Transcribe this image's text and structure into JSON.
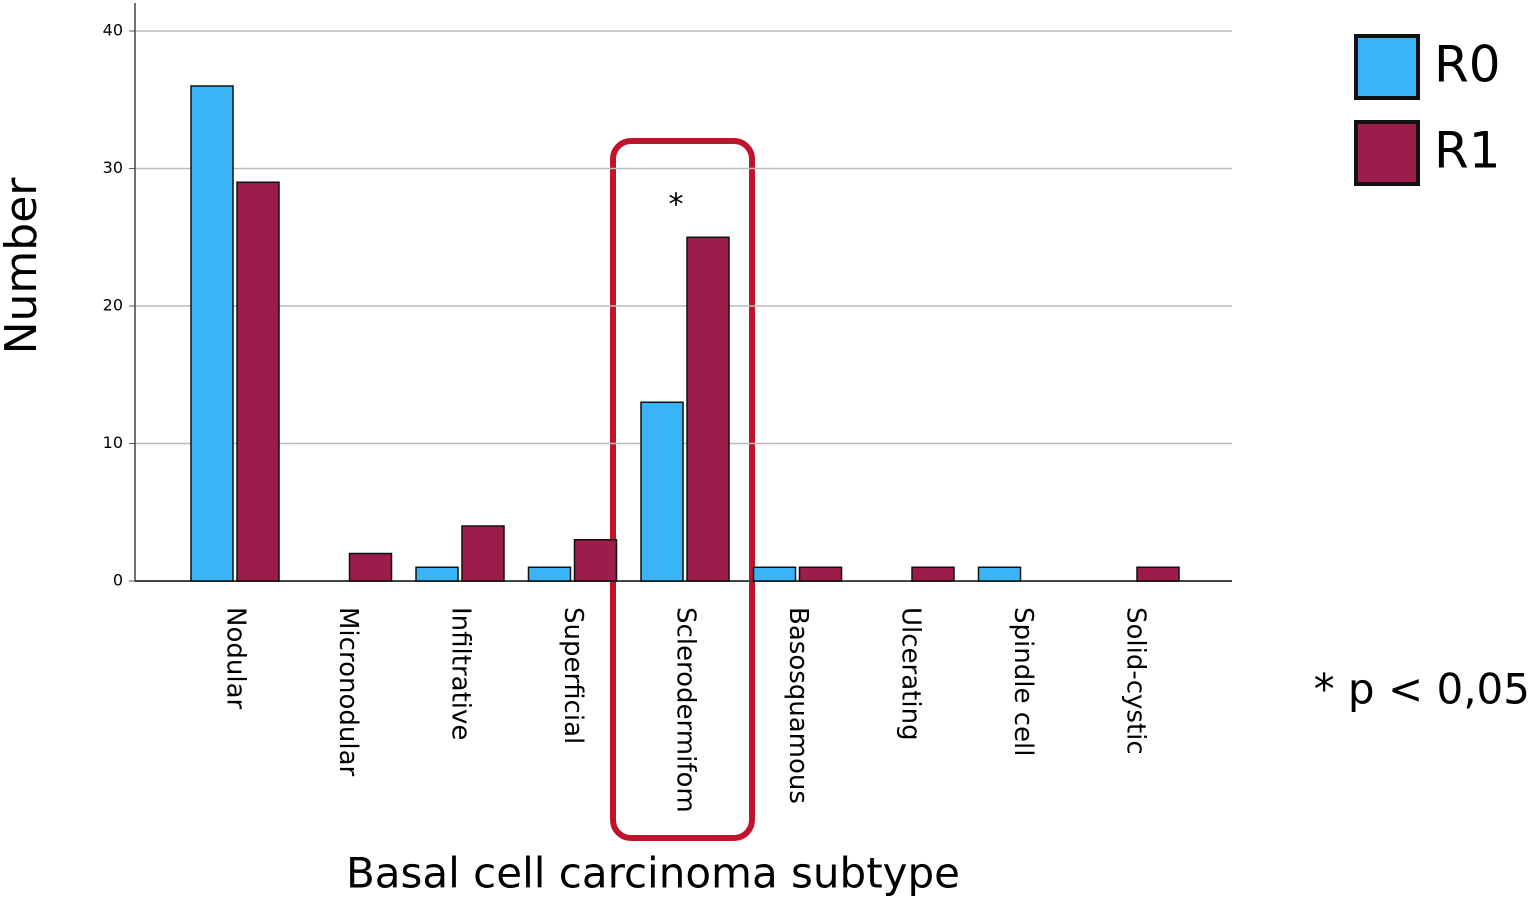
{
  "chart_data": {
    "type": "bar",
    "x_label": "Basal cell carcinoma subtype",
    "y_label": "Number",
    "categories": [
      "Nodular",
      "Micronodular",
      "Infiltrative",
      "Superficial",
      "Sclerodermifom",
      "Basosquamous",
      "Ulcerating",
      "Spindle cell",
      "Solid-cystic"
    ],
    "series": [
      {
        "name": "R0",
        "color": "#38b4f7",
        "values": [
          36,
          0,
          1,
          1,
          13,
          1,
          0,
          1,
          0
        ]
      },
      {
        "name": "R1",
        "color": "#9c1d4b",
        "values": [
          29,
          2,
          4,
          3,
          25,
          1,
          1,
          0,
          1
        ]
      }
    ],
    "ylim": [
      0,
      40
    ],
    "yticks": [
      0,
      10,
      20,
      30,
      40
    ],
    "grid": true,
    "annotations": [
      "*",
      "* p < 0,05"
    ]
  }
}
